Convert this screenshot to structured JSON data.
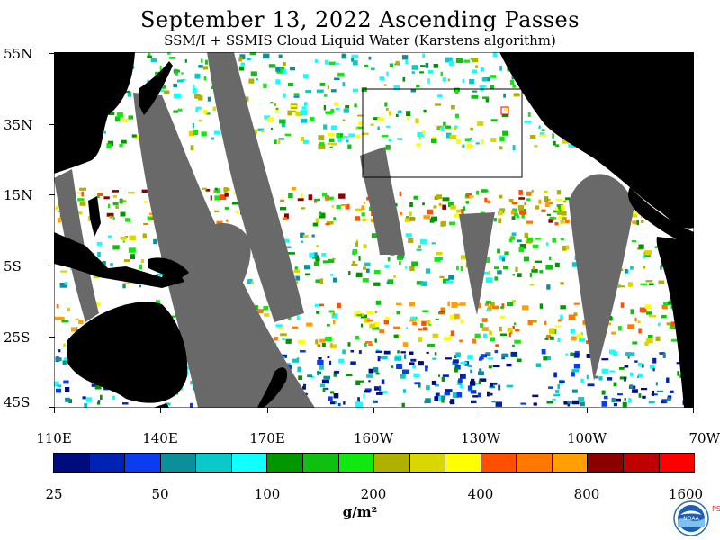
{
  "title": "September 13, 2022  Ascending Passes",
  "subtitle": "SSM/I + SSMIS Cloud Liquid Water (Karstens algorithm)",
  "latitude_labels": [
    "55N",
    "35N",
    "15N",
    "5S",
    "25S",
    "45S"
  ],
  "longitude_labels": [
    "110E",
    "140E",
    "170E",
    "160W",
    "130W",
    "100W",
    "70W"
  ],
  "colorbar": {
    "colors": [
      "#000b7e",
      "#0022b4",
      "#0a3cf0",
      "#0b8f98",
      "#0cc8c8",
      "#11ffff",
      "#009600",
      "#10c010",
      "#10e810",
      "#b0b000",
      "#d8d800",
      "#ffff00",
      "#ff5000",
      "#ff7800",
      "#ffa000",
      "#8c0000",
      "#c00000",
      "#ff0000"
    ],
    "labels": [
      "25",
      "50",
      "100",
      "200",
      "400",
      "800",
      "1600"
    ],
    "units": "g/m²"
  },
  "map_colors": {
    "land": "#000000",
    "no_data": "#696969",
    "ocean_clear": "#ffffff",
    "region_box": "#000000",
    "marker": "#ff0000"
  },
  "logo": {
    "icon": "noaa-logo",
    "text": "NOAA"
  },
  "side_text": "PS"
}
